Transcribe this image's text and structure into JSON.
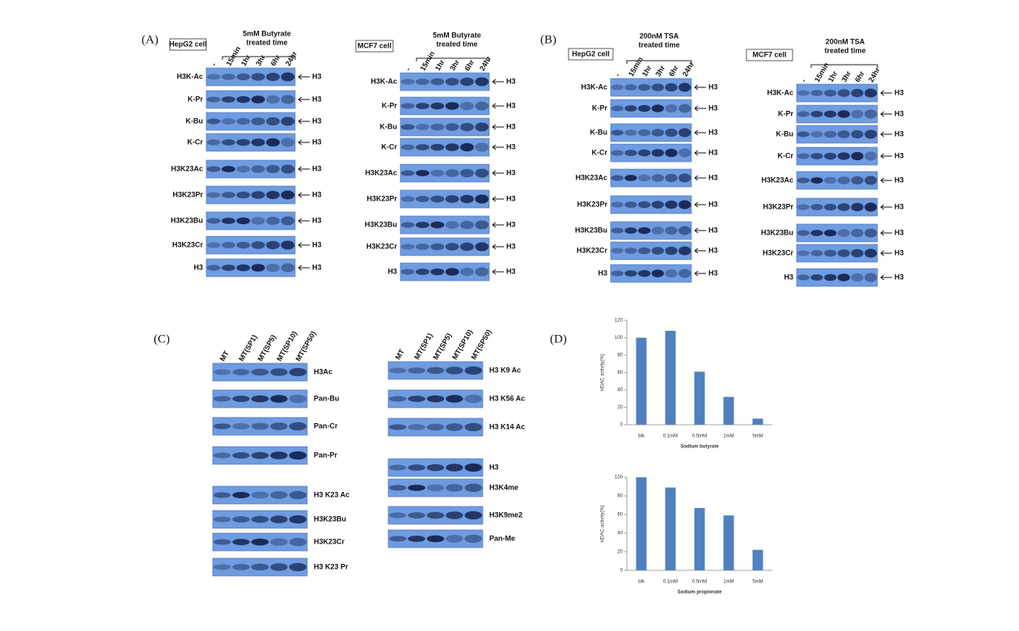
{
  "panels": [
    {
      "label": "(A)",
      "blots": [
        {
          "cell": "HepG2 cell",
          "treatment": [
            "5mM Butyrate",
            "treated time"
          ],
          "lanes": [
            "-",
            "15min",
            "1hr",
            "3hr",
            "6hr",
            "24hr"
          ],
          "marker": "H3",
          "rows": [
            "H3K-Ac",
            "K-Pr",
            "K-Bu",
            "K-Cr",
            "H3K23Ac",
            "H3K23Pr",
            "H3K23Bu",
            "H3K23Cr",
            "H3"
          ]
        },
        {
          "cell": "MCF7 cell",
          "treatment": [
            "5mM Butyrate",
            "treated time"
          ],
          "lanes": [
            "-",
            "15min",
            "1hr",
            "3hr",
            "6hr",
            "24hr"
          ],
          "marker": "H3",
          "rows": [
            "H3K-Ac",
            "K-Pr",
            "K-Bu",
            "K-Cr",
            "H3K23Ac",
            "H3K23Pr",
            "H3K23Bu",
            "H3K23Cr",
            "H3"
          ]
        }
      ]
    },
    {
      "label": "(B)",
      "blots": [
        {
          "cell": "HepG2 cell",
          "treatment": [
            "200nM TSA",
            "treated time"
          ],
          "lanes": [
            "-",
            "15min",
            "1hr",
            "3hr",
            "6hr",
            "24hr"
          ],
          "marker": "H3",
          "rows": [
            "H3K-Ac",
            "K-Pr",
            "K-Bu",
            "K-Cr",
            "H3K23Ac",
            "H3K23Pr",
            "H3K23Bu",
            "H3K23Cr",
            "H3"
          ]
        },
        {
          "cell": "MCF7 cell",
          "treatment": [
            "200nM TSA",
            "treated time"
          ],
          "lanes": [
            "-",
            "15min",
            "1hr",
            "3hr",
            "6hr",
            "24hr"
          ],
          "marker": "H3",
          "rows": [
            "H3K-Ac",
            "K-Pr",
            "K-Bu",
            "K-Cr",
            "H3K23Ac",
            "H3K23Pr",
            "H3K23Bu",
            "H3K23Cr",
            "H3"
          ]
        }
      ]
    },
    {
      "label": "(C)",
      "blots": [
        {
          "lanes": [
            "MT",
            "MT(SP1)",
            "MT(SP5)",
            "MT(SP10)",
            "MT(SP50)"
          ],
          "rows": [
            "H3Ac",
            "Pan-Bu",
            "Pan-Cr",
            "Pan-Pr",
            "H3 K23 Ac",
            "H3K23Bu",
            "H3K23Cr",
            "H3 K23 Pr"
          ]
        },
        {
          "lanes": [
            "MT",
            "MT(SP1)",
            "MT(SP5)",
            "MT(SP10)",
            "MT(SP50)"
          ],
          "rows": [
            "H3 K9 Ac",
            "H3 K56 Ac",
            "H3 K14 Ac",
            "H3",
            "H3K4me",
            "H3K9me2",
            "Pan-Me"
          ]
        }
      ]
    }
  ],
  "panel_d": {
    "label": "(D)"
  },
  "chart_data": [
    {
      "type": "bar",
      "y_label": "HDAC activity(%)",
      "x_label": "Sodium butyrate",
      "color": "#4f81bd",
      "categories": [
        "blk",
        "0.1mM",
        "0.5mM",
        "1mM",
        "5mM"
      ],
      "values": [
        100,
        108,
        61,
        32,
        7
      ],
      "ylim": [
        0,
        120
      ],
      "yticks": [
        0,
        20,
        40,
        60,
        80,
        100,
        120
      ]
    },
    {
      "type": "bar",
      "y_label": "HDAC activity(%)",
      "x_label": "Sodium propionate",
      "color": "#4f81bd",
      "categories": [
        "blk",
        "0.1mM",
        "0.5mM",
        "1mM",
        "5mM"
      ],
      "values": [
        100,
        89,
        67,
        59,
        22
      ],
      "ylim": [
        0,
        100
      ],
      "yticks": [
        0,
        20,
        40,
        60,
        80,
        100
      ]
    }
  ]
}
